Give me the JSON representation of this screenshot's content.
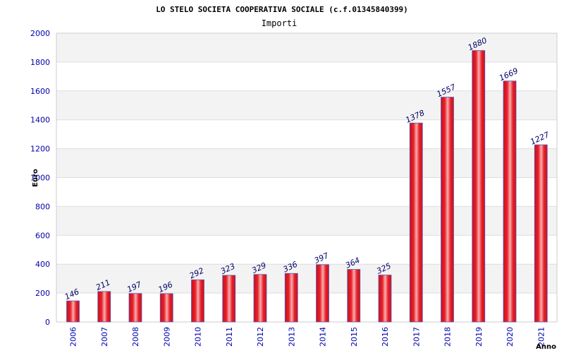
{
  "chart_data": {
    "type": "bar",
    "title": "LO STELO SOCIETA COOPERATIVA SOCIALE (c.f.01345840399)",
    "subtitle": "Importi",
    "ylabel": "Euro",
    "xlabel": "Anno",
    "ylim": [
      0,
      2000
    ],
    "yticks": [
      0,
      200,
      400,
      600,
      800,
      1000,
      1200,
      1400,
      1600,
      1800,
      2000
    ],
    "grid": true,
    "categories": [
      "2006",
      "2007",
      "2008",
      "2009",
      "2010",
      "2011",
      "2012",
      "2013",
      "2014",
      "2015",
      "2016",
      "2017",
      "2018",
      "2019",
      "2020",
      "2021"
    ],
    "values": [
      146,
      211,
      197,
      196,
      292,
      323,
      329,
      336,
      397,
      364,
      325,
      1378,
      1557,
      1880,
      1669,
      1227
    ],
    "colors": {
      "bar": "#e8202a",
      "bar_light": "#f7a3a3",
      "bar_edge": "#5a5ab4",
      "band": "#f3f3f3",
      "grid": "#dddddd",
      "tick_text": "#0000aa"
    }
  }
}
